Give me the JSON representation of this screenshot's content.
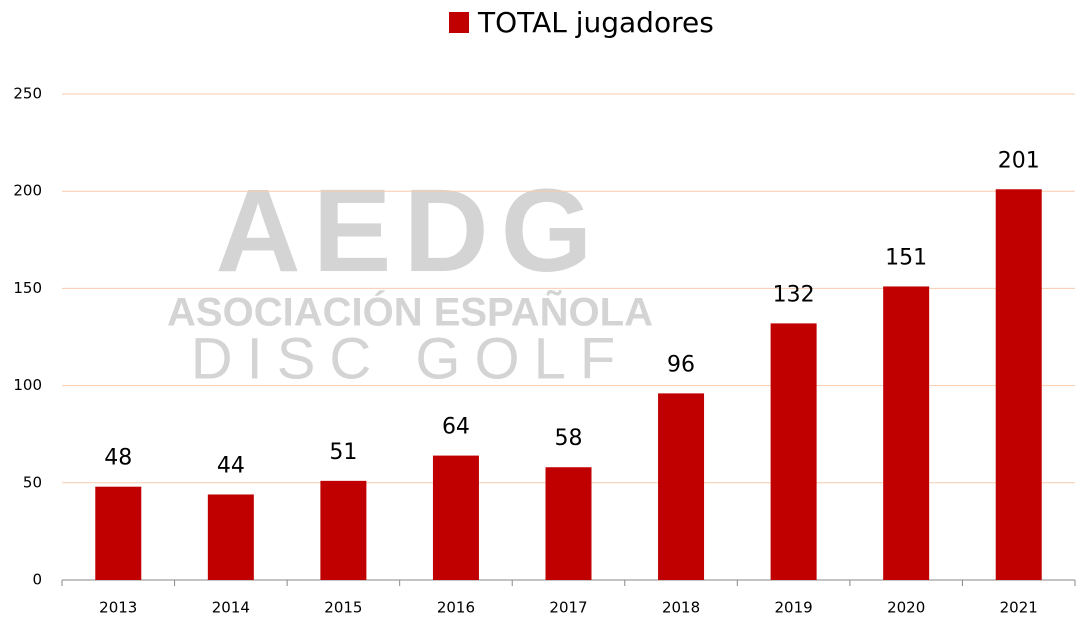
{
  "chart_data": {
    "type": "bar",
    "categories": [
      "2013",
      "2014",
      "2015",
      "2016",
      "2017",
      "2018",
      "2019",
      "2020",
      "2021"
    ],
    "series": [
      {
        "name": "TOTAL jugadores",
        "color": "#c00000",
        "values": [
          48,
          44,
          51,
          64,
          58,
          96,
          132,
          151,
          201
        ]
      }
    ],
    "ylim": [
      0,
      250
    ],
    "yticks": [
      0,
      50,
      100,
      150,
      200,
      250
    ],
    "grid": true,
    "grid_color": "#f8cbad",
    "legend": "top",
    "watermark": {
      "title": "AEDG",
      "line1": "ASOCIACIÓN ESPAÑOLA",
      "line2": "DISC GOLF"
    }
  }
}
